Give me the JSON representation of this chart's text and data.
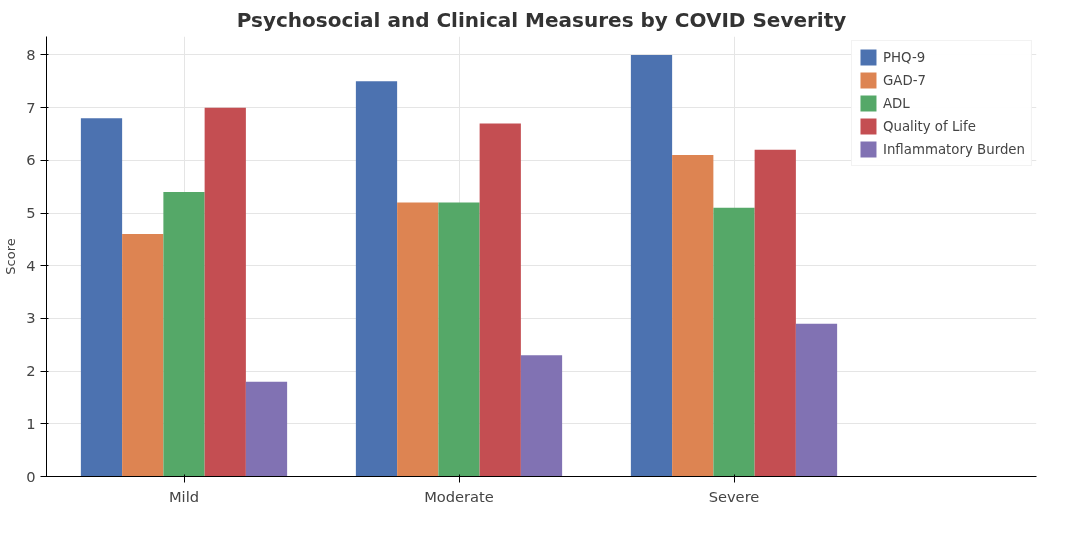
{
  "chart_data": {
    "type": "bar",
    "title": "Psychosocial and Clinical Measures by COVID Severity",
    "ylabel": "Score",
    "categories": [
      "Mild",
      "Moderate",
      "Severe"
    ],
    "series": [
      {
        "name": "PHQ-9",
        "color": "#4c72b0",
        "values": [
          6.8,
          7.5,
          8.0
        ]
      },
      {
        "name": "GAD-7",
        "color": "#dd8452",
        "values": [
          4.6,
          5.2,
          6.1
        ]
      },
      {
        "name": "ADL",
        "color": "#55a868",
        "values": [
          5.4,
          5.2,
          5.1
        ]
      },
      {
        "name": "Quality of Life",
        "color": "#c44e52",
        "values": [
          7.0,
          6.7,
          6.2
        ]
      },
      {
        "name": "Inflammatory Burden",
        "color": "#8172b3",
        "values": [
          1.8,
          2.3,
          2.9
        ]
      }
    ],
    "ylim": [
      0,
      8.35
    ],
    "yticks": [
      0,
      1,
      2,
      3,
      4,
      5,
      6,
      7,
      8
    ],
    "grid": true,
    "legend": "right"
  }
}
